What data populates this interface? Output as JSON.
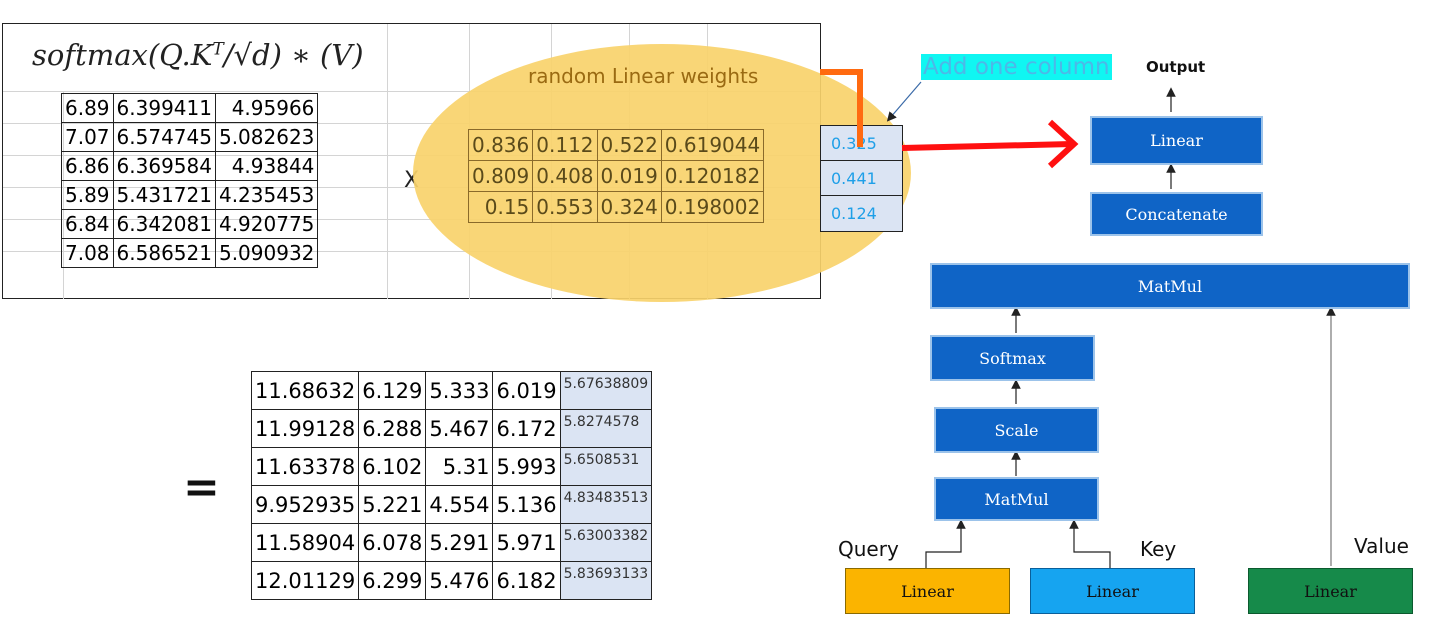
{
  "formula": {
    "text": "softmax(Q.K",
    "superscript": "T",
    "text_after": "/√d) ∗ (V)"
  },
  "qk_matrix": [
    [
      "6.89",
      "6.399411",
      "4.95966"
    ],
    [
      "7.07",
      "6.574745",
      "5.082623"
    ],
    [
      "6.86",
      "6.369584",
      "4.93844"
    ],
    [
      "5.89",
      "5.431721",
      "4.235453"
    ],
    [
      "6.84",
      "6.342081",
      "4.920775"
    ],
    [
      "7.08",
      "6.586521",
      "5.090932"
    ]
  ],
  "multiply_sign": "X",
  "weights": {
    "title": "random Linear weights",
    "rows": [
      [
        "0.836",
        "0.112",
        "0.522",
        "0.619044"
      ],
      [
        "0.809",
        "0.408",
        "0.019",
        "0.120182"
      ],
      [
        "0.15",
        "0.553",
        "0.324",
        "0.198002"
      ]
    ],
    "added_column": [
      "0.325",
      "0.441",
      "0.124"
    ],
    "added_column_label": "Add one column"
  },
  "equals_sign": "=",
  "result": {
    "rows": [
      [
        "11.68632",
        "6.129",
        "5.333",
        "6.019"
      ],
      [
        "11.99128",
        "6.288",
        "5.467",
        "6.172"
      ],
      [
        "11.63378",
        "6.102",
        "5.31",
        "5.993"
      ],
      [
        "9.952935",
        "5.221",
        "4.554",
        "5.136"
      ],
      [
        "11.58904",
        "6.078",
        "5.291",
        "5.971"
      ],
      [
        "12.01129",
        "6.299",
        "5.476",
        "6.182"
      ]
    ],
    "extra_column": [
      "5.67638809",
      "5.8274578",
      "5.6508531",
      "4.83483513",
      "5.63003382",
      "5.83693133"
    ]
  },
  "diagram": {
    "output_label": "Output",
    "linear_top": "Linear",
    "concatenate": "Concatenate",
    "matmul_top": "MatMul",
    "softmax": "Softmax",
    "scale": "Scale",
    "matmul_bottom": "MatMul",
    "query_label": "Query",
    "key_label": "Key",
    "value_label": "Value",
    "linear_query": "Linear",
    "linear_key": "Linear",
    "linear_value": "Linear"
  },
  "colors": {
    "ellipse": "#f9d36b",
    "block_blue": "#0f64c6",
    "query_linear": "#fbb400",
    "key_linear": "#16a4f0",
    "value_linear": "#168a4a",
    "arrow_red": "#ff1010",
    "arrow_orange": "#ff6a10",
    "highlight_cyan": "#10f6f2"
  }
}
